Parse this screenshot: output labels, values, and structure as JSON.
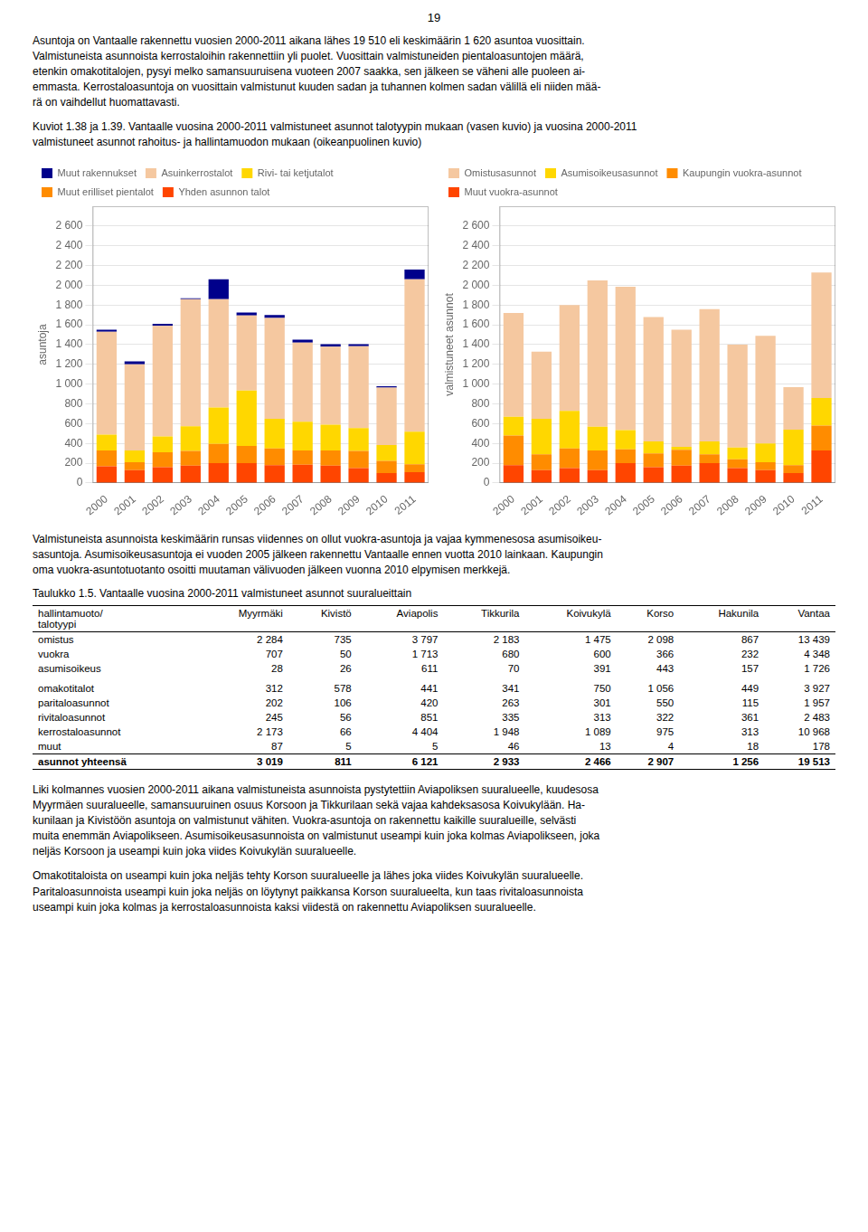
{
  "page_number": "19",
  "text_above_charts": [
    "Asuntoja on Vantaalle rakennettu vuosien 2000-2011 aikana lähes 19 510 eli keskimäärin 1 620 asuntoa vuosittain.\nValmistuneista asunnoista kerrostaloihin rakennettiin yli puolet. Vuosittain valmistuneiden pientaloasuntojen määrä,\netenkin omakotitalojen, pysyi melko samansuuruisena vuoteen 2007 saakka, sen jälkeen se väheni alle puoleen ai-\nemmasta. Kerrostaloasuntoja on vuosittain valmistunut kuuden sadan ja tuhannen kolmen sadan välillä eli niiden mää-\nrä on vaihdellut huomattavasti.",
    "Kuviot  1.38 ja 1.39.  Vantaalle vuosina 2000-2011 valmistuneet asunnot talotyypin mukaan (vasen kuvio) ja vuosina 2000-2011\n     valmistuneet asunnot rahoitus- ja hallintamuodon mukaan (oikeanpuolinen kuvio)"
  ],
  "chart_data": [
    {
      "type": "bar",
      "stacked": true,
      "categories": [
        "2000",
        "2001",
        "2002",
        "2003",
        "2004",
        "2005",
        "2006",
        "2007",
        "2008",
        "2009",
        "2010",
        "2011"
      ],
      "series": [
        {
          "name": "Yhden asunnon talot",
          "color": "#FF4500",
          "values": [
            170,
            130,
            160,
            175,
            200,
            200,
            180,
            185,
            175,
            150,
            100,
            110
          ]
        },
        {
          "name": "Muut erilliset pientalot",
          "color": "#FF8C00",
          "values": [
            160,
            80,
            150,
            150,
            195,
            175,
            170,
            145,
            155,
            175,
            125,
            80
          ]
        },
        {
          "name": "Rivi- tai ketjutalot",
          "color": "#FFD700",
          "values": [
            160,
            120,
            160,
            250,
            370,
            560,
            300,
            290,
            260,
            230,
            160,
            330
          ]
        },
        {
          "name": "Asuinkerrostalot",
          "color": "#F5C8A0",
          "values": [
            1040,
            870,
            1120,
            1285,
            1095,
            760,
            1020,
            800,
            790,
            830,
            580,
            1540
          ]
        },
        {
          "name": "Muut rakennukset",
          "color": "#00008B",
          "values": [
            20,
            30,
            20,
            10,
            200,
            30,
            30,
            30,
            25,
            20,
            15,
            100
          ]
        }
      ],
      "ylabel": "asuntoja",
      "ylim": [
        0,
        2800
      ],
      "yticks": [
        0,
        200,
        400,
        600,
        800,
        {
          "value": 1000,
          "label": "1 000"
        },
        {
          "value": 1200,
          "label": "1 200"
        },
        {
          "value": 1400,
          "label": "1 400"
        },
        {
          "value": 1600,
          "label": "1 600"
        },
        {
          "value": 1800,
          "label": "1 800"
        },
        {
          "value": 2000,
          "label": "2 000"
        },
        {
          "value": 2200,
          "label": "2 200"
        },
        {
          "value": 2400,
          "label": "2 400"
        },
        {
          "value": 2600,
          "label": "2 600"
        }
      ],
      "grid": true,
      "legend": "top"
    },
    {
      "type": "bar",
      "stacked": true,
      "categories": [
        "2000",
        "2001",
        "2002",
        "2003",
        "2004",
        "2005",
        "2006",
        "2007",
        "2008",
        "2009",
        "2010",
        "2011"
      ],
      "series": [
        {
          "name": "Muut vuokra-asunnot",
          "color": "#FF4500",
          "values": [
            180,
            130,
            150,
            130,
            200,
            160,
            175,
            200,
            150,
            130,
            100,
            330
          ]
        },
        {
          "name": "Kaupungin vuokra-asunnot",
          "color": "#FF8C00",
          "values": [
            300,
            160,
            200,
            200,
            140,
            140,
            160,
            90,
            90,
            80,
            80,
            250
          ]
        },
        {
          "name": "Asumisoikeusasunnot",
          "color": "#FFD700",
          "values": [
            190,
            360,
            380,
            240,
            195,
            120,
            30,
            130,
            120,
            190,
            360,
            280
          ]
        },
        {
          "name": "Omistusasunnot",
          "color": "#F5C8A0",
          "values": [
            1050,
            680,
            1070,
            1480,
            1450,
            1260,
            1185,
            1340,
            1040,
            1090,
            430,
            1270
          ]
        }
      ],
      "ylabel": "valmistuneet asunnot",
      "ylim": [
        0,
        2800
      ],
      "yticks": [
        0,
        200,
        400,
        600,
        800,
        {
          "value": 1000,
          "label": "1 000"
        },
        {
          "value": 1200,
          "label": "1 200"
        },
        {
          "value": 1400,
          "label": "1 400"
        },
        {
          "value": 1600,
          "label": "1 600"
        },
        {
          "value": 1800,
          "label": "1 800"
        },
        {
          "value": 2000,
          "label": "2 000"
        },
        {
          "value": 2200,
          "label": "2 200"
        },
        {
          "value": 2400,
          "label": "2 400"
        },
        {
          "value": 2600,
          "label": "2 600"
        }
      ],
      "grid": true,
      "legend": "top"
    }
  ],
  "text_below_charts": [
    "Valmistuneista asunnoista keskimäärin runsas viidennes on ollut vuokra-asuntoja ja vajaa kymmenesosa asumisoikeu-\nsasuntoja. Asumisoikeusasuntoja ei vuoden 2005 jälkeen rakennettu Vantaalle ennen vuotta 2010 lainkaan. Kaupungin\noma vuokra-asuntotuotanto osoitti muutaman välivuoden jälkeen vuonna 2010 elpymisen merkkejä."
  ],
  "table": {
    "title": "Taulukko 1.5.      Vantaalle vuosina 2000-2011 valmistuneet asunnot suuralueittain",
    "headers": [
      "hallintamuoto/\ntalotyypi",
      "Myyrmäki",
      "Kivistö",
      "Aviapolis",
      "Tikkurila",
      "Koivukylä",
      "Korso",
      "Hakunila",
      "Vantaa"
    ],
    "row_groups": [
      [
        [
          "omistus",
          "2 284",
          "735",
          "3 797",
          "2 183",
          "1 475",
          "2 098",
          "867",
          "13 439"
        ],
        [
          "vuokra",
          "707",
          "50",
          "1 713",
          "680",
          "600",
          "366",
          "232",
          "4 348"
        ],
        [
          "asumisoikeus",
          "28",
          "26",
          "611",
          "70",
          "391",
          "443",
          "157",
          "1 726"
        ]
      ],
      [
        [
          "omakotitalot",
          "312",
          "578",
          "441",
          "341",
          "750",
          "1 056",
          "449",
          "3 927"
        ],
        [
          "paritaloasunnot",
          "202",
          "106",
          "420",
          "263",
          "301",
          "550",
          "115",
          "1 957"
        ],
        [
          "rivitaloasunnot",
          "245",
          "56",
          "851",
          "335",
          "313",
          "322",
          "361",
          "2 483"
        ],
        [
          "kerrostaloasunnot",
          "2 173",
          "66",
          "4 404",
          "1 948",
          "1 089",
          "975",
          "313",
          "10 968"
        ],
        [
          "muut",
          "87",
          "5",
          "5",
          "46",
          "13",
          "4",
          "18",
          "178"
        ]
      ],
      [
        [
          "asunnot yhteensä",
          "3 019",
          "811",
          "6 121",
          "2 933",
          "2 466",
          "2 907",
          "1 256",
          "19 513"
        ]
      ]
    ]
  },
  "text_below_table": [
    "Liki kolmannes vuosien 2000-2011 aikana valmistuneista asunnoista pystytettiin Aviapoliksen suuralueelle, kuudesosa\nMyyrmäen suuralueelle, samansuuruinen osuus Korsoon ja Tikkurilaan sekä vajaa kahdeksasosa Koivukylään. Ha-\nkunilaan ja Kivistöön asuntoja on valmistunut vähiten. Vuokra-asuntoja on rakennettu kaikille suuralueille, selvästi\nmuita enemmän Aviapolikseen. Asumisoikeusasunnoista on valmistunut useampi kuin joka kolmas Aviapolikseen, joka\nneljäs Korsoon ja useampi kuin joka viides Koivukylän suuralueelle.",
    "Omakotitaloista on useampi kuin joka neljäs tehty Korson suuralueelle ja lähes joka viides Koivukylän suuralueelle.\nParitaloasunnoista useampi kuin joka neljäs on löytynyt paikkansa Korson suuralueelta, kun taas rivitaloasunnoista\nuseampi kuin joka kolmas ja kerrostaloasunnoista kaksi viidestä on rakennettu Aviapoliksen suuralueelle."
  ]
}
